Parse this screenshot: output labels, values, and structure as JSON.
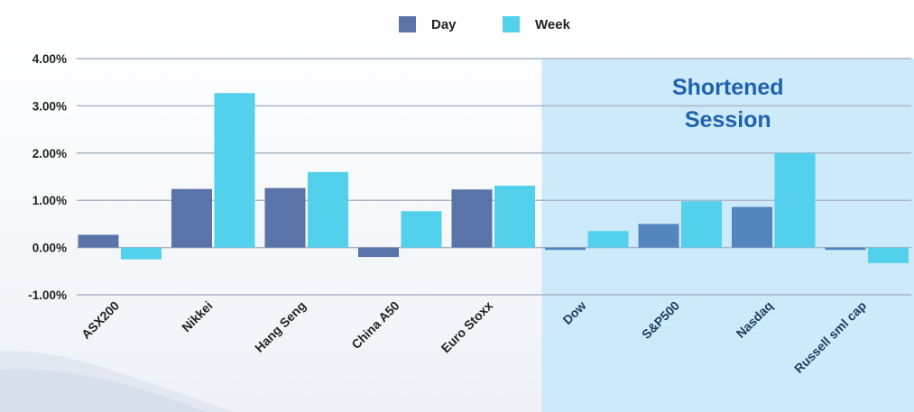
{
  "chart_data": {
    "type": "bar",
    "categories": [
      "ASX200",
      "Nikkei",
      "Hang Seng",
      "China A50",
      "Euro Stoxx",
      "Dow",
      "S&P500",
      "Nasdaq",
      "Russell sml cap"
    ],
    "series": [
      {
        "name": "Day",
        "values": [
          0.27,
          1.24,
          1.26,
          -0.2,
          1.23,
          -0.05,
          0.5,
          0.86,
          -0.05
        ]
      },
      {
        "name": "Week",
        "values": [
          -0.25,
          3.27,
          1.6,
          0.77,
          1.31,
          0.35,
          0.98,
          2.0,
          -0.33
        ]
      }
    ],
    "yticks": [
      "4.00%",
      "3.00%",
      "2.00%",
      "1.00%",
      "0.00%",
      "-1.00%"
    ],
    "ylim": [
      -1,
      4
    ],
    "grid": true,
    "legend": "top-center",
    "annotation": {
      "lines": [
        "Shortened",
        "Session"
      ],
      "covers_categories": [
        "Dow",
        "S&P500",
        "Nasdaq",
        "Russell sml cap"
      ]
    },
    "colors": {
      "day": "#5a73a8",
      "day_highlight": "#5585bd",
      "week": "#53d0ec",
      "highlight_bg": "#cdeafa",
      "annotation_text": "#1f62ad",
      "label_text": "#222222",
      "highlight_label_text": "#1d3a5f",
      "grid": "#a9b5c7"
    }
  }
}
